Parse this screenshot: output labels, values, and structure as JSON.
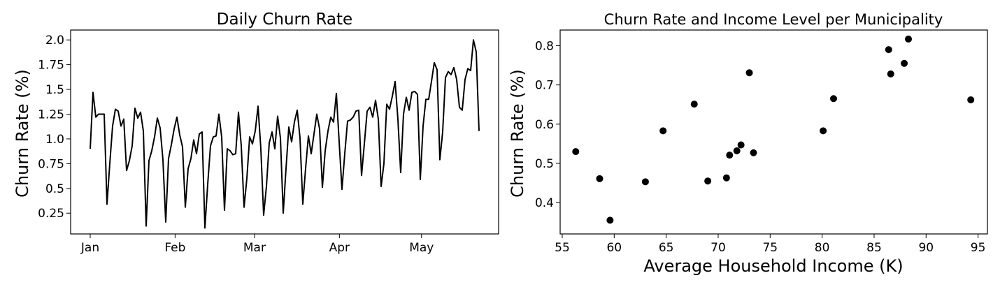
{
  "chart_data": [
    {
      "type": "line",
      "title": "Daily Churn Rate",
      "xlabel": "",
      "ylabel": "Churn Rate (%)",
      "x_tick_labels": [
        "Jan",
        "Feb",
        "Mar",
        "Apr",
        "May"
      ],
      "y_ticks": [
        0.25,
        0.5,
        0.75,
        1.0,
        1.25,
        1.5,
        1.75,
        2.0
      ],
      "y_tick_labels": [
        "0.25",
        "0.5",
        "0.75",
        "1.0",
        "1.25",
        "1.5",
        "1.75",
        "2.0"
      ],
      "ylim": [
        0.04,
        2.1
      ],
      "x_start": "2020-01-01",
      "x_end": "2020-05-22",
      "grid": false,
      "color": "#000000",
      "series": [
        {
          "values": [
            0.9,
            1.47,
            1.22,
            1.25,
            1.25,
            1.25,
            0.34,
            0.75,
            1.13,
            1.3,
            1.28,
            1.13,
            1.2,
            0.68,
            0.78,
            0.93,
            1.31,
            1.21,
            1.27,
            1.08,
            0.12,
            0.78,
            0.88,
            1.02,
            1.21,
            1.11,
            0.79,
            0.16,
            0.8,
            0.94,
            1.1,
            1.22,
            1.04,
            0.92,
            0.31,
            0.7,
            0.8,
            0.99,
            0.85,
            1.05,
            1.07,
            0.1,
            0.54,
            0.93,
            1.02,
            1.03,
            1.25,
            1.02,
            0.28,
            0.9,
            0.88,
            0.84,
            0.85,
            1.27,
            0.93,
            0.31,
            0.6,
            1.02,
            0.95,
            1.08,
            1.33,
            0.9,
            0.23,
            0.52,
            0.96,
            1.07,
            0.9,
            1.23,
            1.01,
            0.25,
            0.7,
            1.12,
            0.97,
            1.17,
            1.29,
            1.01,
            0.34,
            0.7,
            1.03,
            0.85,
            1.05,
            1.25,
            1.1,
            0.51,
            0.88,
            1.08,
            1.22,
            1.17,
            1.46,
            0.97,
            0.49,
            0.85,
            1.18,
            1.19,
            1.22,
            1.28,
            1.29,
            0.63,
            0.95,
            1.28,
            1.32,
            1.22,
            1.39,
            1.2,
            0.52,
            0.75,
            1.35,
            1.3,
            1.43,
            1.58,
            1.2,
            0.66,
            1.25,
            1.42,
            1.29,
            1.47,
            1.48,
            1.45,
            0.59,
            1.13,
            1.4,
            1.4,
            1.58,
            1.77,
            1.7,
            0.79,
            1.07,
            1.62,
            1.68,
            1.65,
            1.72,
            1.6,
            1.32,
            1.29,
            1.6,
            1.71,
            1.69,
            2.0,
            1.88,
            1.08
          ]
        }
      ]
    },
    {
      "type": "scatter",
      "title": "Churn Rate and Income Level per Municipality",
      "xlabel": "Average Household Income (K)",
      "ylabel": "Churn Rate (%)",
      "xlim": [
        54.8,
        95.9
      ],
      "ylim": [
        0.32,
        0.84
      ],
      "x_ticks": [
        55,
        60,
        65,
        70,
        75,
        80,
        85,
        90,
        95
      ],
      "x_tick_labels": [
        "55",
        "60",
        "65",
        "70",
        "75",
        "80",
        "85",
        "90",
        "95"
      ],
      "y_ticks": [
        0.4,
        0.5,
        0.6,
        0.7,
        0.8
      ],
      "y_tick_labels": [
        "0.4",
        "0.5",
        "0.6",
        "0.7",
        "0.8"
      ],
      "grid": false,
      "color": "#000000",
      "points": [
        {
          "x": 56.3,
          "y": 0.53
        },
        {
          "x": 58.6,
          "y": 0.461
        },
        {
          "x": 59.6,
          "y": 0.355
        },
        {
          "x": 63.0,
          "y": 0.453
        },
        {
          "x": 64.7,
          "y": 0.583
        },
        {
          "x": 67.7,
          "y": 0.651
        },
        {
          "x": 69.0,
          "y": 0.455
        },
        {
          "x": 70.8,
          "y": 0.463
        },
        {
          "x": 71.1,
          "y": 0.521
        },
        {
          "x": 71.8,
          "y": 0.532
        },
        {
          "x": 72.2,
          "y": 0.547
        },
        {
          "x": 73.0,
          "y": 0.731
        },
        {
          "x": 73.4,
          "y": 0.527
        },
        {
          "x": 80.1,
          "y": 0.583
        },
        {
          "x": 81.1,
          "y": 0.665
        },
        {
          "x": 86.4,
          "y": 0.79
        },
        {
          "x": 86.6,
          "y": 0.728
        },
        {
          "x": 87.9,
          "y": 0.755
        },
        {
          "x": 88.3,
          "y": 0.817
        },
        {
          "x": 94.3,
          "y": 0.662
        }
      ]
    }
  ]
}
